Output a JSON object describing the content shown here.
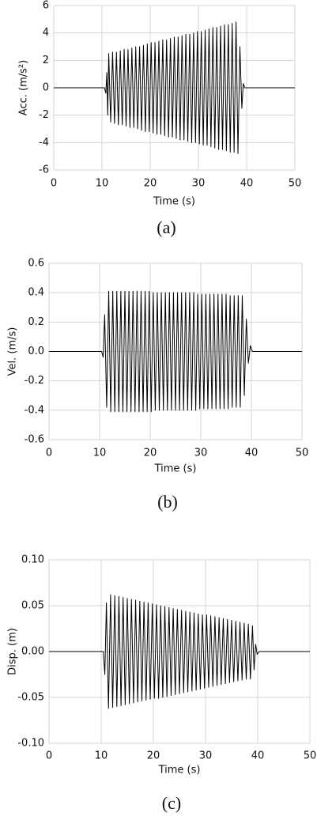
{
  "chart_data": [
    {
      "type": "line",
      "caption": "(a)",
      "x_label": "Time (s)",
      "y_label": "Acc. (m/s²)",
      "xlim": [
        0,
        50
      ],
      "xticks": [
        0,
        10,
        20,
        30,
        40,
        50
      ],
      "ylim": [
        -6,
        6
      ],
      "yticks": [
        -6,
        -4,
        -2,
        0,
        2,
        4,
        6
      ],
      "grid": true,
      "color": "#000000",
      "x": [
        0,
        10.5,
        10.8,
        11.0,
        11.2,
        11.4,
        11.8,
        12.2,
        12.6,
        13.0,
        13.4,
        13.8,
        14.2,
        14.6,
        15.0,
        15.4,
        15.8,
        16.2,
        16.6,
        17.0,
        17.4,
        17.8,
        18.2,
        18.6,
        19.0,
        19.4,
        19.8,
        20.2,
        20.6,
        21.0,
        21.4,
        21.8,
        22.2,
        22.6,
        23.0,
        23.4,
        23.8,
        24.2,
        24.6,
        25.0,
        25.4,
        25.8,
        26.2,
        26.6,
        27.0,
        27.4,
        27.8,
        28.2,
        28.6,
        29.0,
        29.4,
        29.8,
        30.2,
        30.6,
        31.0,
        31.4,
        31.8,
        32.2,
        32.6,
        33.0,
        33.4,
        33.8,
        34.2,
        34.6,
        35.0,
        35.4,
        35.8,
        36.2,
        36.6,
        37.0,
        37.4,
        37.8,
        38.2,
        38.6,
        39.0,
        39.3,
        39.6,
        50
      ],
      "values": [
        0,
        0,
        -0.4,
        1.1,
        -2.0,
        2.5,
        -2.5,
        2.6,
        -2.6,
        2.6,
        -2.7,
        2.7,
        -2.7,
        2.8,
        -2.8,
        2.8,
        -2.9,
        2.9,
        -2.9,
        3.0,
        -3.0,
        3.0,
        -3.1,
        3.1,
        -3.2,
        3.2,
        -3.2,
        3.3,
        -3.3,
        3.3,
        -3.4,
        3.4,
        -3.4,
        3.5,
        -3.5,
        3.5,
        -3.6,
        3.6,
        -3.6,
        3.7,
        -3.7,
        3.7,
        -3.8,
        3.8,
        -3.8,
        3.9,
        -3.9,
        3.9,
        -4.0,
        4.0,
        -4.0,
        4.1,
        -4.1,
        4.1,
        -4.2,
        4.2,
        -4.2,
        4.3,
        -4.3,
        4.4,
        -4.4,
        4.4,
        -4.5,
        4.5,
        -4.5,
        4.6,
        -4.6,
        4.6,
        -4.7,
        4.7,
        -4.7,
        4.8,
        -4.8,
        3.0,
        -1.5,
        0.3,
        0,
        0
      ]
    },
    {
      "type": "line",
      "caption": "(b)",
      "x_label": "Time (s)",
      "y_label": "Vel. (m/s)",
      "xlim": [
        0,
        50
      ],
      "xticks": [
        0,
        10,
        20,
        30,
        40,
        50
      ],
      "ylim": [
        -0.6,
        0.6
      ],
      "yticks": [
        -0.6,
        -0.4,
        -0.2,
        {
          "value": 0,
          "label": "0.0"
        },
        0.2,
        0.4,
        0.6
      ],
      "grid": true,
      "color": "#000000",
      "x": [
        0,
        10.4,
        10.7,
        11.0,
        11.4,
        11.8,
        12.2,
        12.6,
        13.0,
        13.4,
        13.8,
        14.2,
        14.6,
        15.0,
        15.4,
        15.8,
        16.2,
        16.6,
        17.0,
        17.4,
        17.8,
        18.2,
        18.6,
        19.0,
        19.4,
        19.8,
        20.2,
        20.6,
        21.0,
        21.4,
        21.8,
        22.2,
        22.6,
        23.0,
        23.4,
        23.8,
        24.2,
        24.6,
        25.0,
        25.4,
        25.8,
        26.2,
        26.6,
        27.0,
        27.4,
        27.8,
        28.2,
        28.6,
        29.0,
        29.4,
        29.8,
        30.2,
        30.6,
        31.0,
        31.4,
        31.8,
        32.2,
        32.6,
        33.0,
        33.4,
        33.8,
        34.2,
        34.6,
        35.0,
        35.4,
        35.8,
        36.2,
        36.6,
        37.0,
        37.4,
        37.8,
        38.2,
        38.6,
        39.0,
        39.4,
        39.8,
        40.2,
        50
      ],
      "values": [
        0,
        0,
        -0.04,
        0.25,
        -0.38,
        0.41,
        -0.41,
        0.41,
        -0.41,
        0.41,
        -0.41,
        0.41,
        -0.41,
        0.41,
        -0.41,
        0.41,
        -0.41,
        0.41,
        -0.41,
        0.41,
        -0.41,
        0.41,
        -0.41,
        0.41,
        -0.41,
        0.41,
        -0.41,
        0.4,
        -0.4,
        0.4,
        -0.4,
        0.4,
        -0.4,
        0.4,
        -0.4,
        0.4,
        -0.4,
        0.4,
        -0.4,
        0.4,
        -0.4,
        0.4,
        -0.4,
        0.4,
        -0.4,
        0.4,
        -0.4,
        0.4,
        -0.4,
        0.39,
        -0.39,
        0.39,
        -0.39,
        0.39,
        -0.39,
        0.39,
        -0.39,
        0.39,
        -0.39,
        0.39,
        -0.39,
        0.39,
        -0.39,
        0.39,
        -0.39,
        0.38,
        -0.38,
        0.38,
        -0.38,
        0.38,
        -0.38,
        0.38,
        -0.3,
        0.22,
        -0.08,
        0.04,
        0,
        0
      ]
    },
    {
      "type": "line",
      "caption": "(c)",
      "x_label": "Time (s)",
      "y_label": "Disp. (m)",
      "xlim": [
        0,
        50
      ],
      "xticks": [
        0,
        10,
        20,
        30,
        40,
        50
      ],
      "ylim": [
        -0.1,
        0.1
      ],
      "yticks": [
        {
          "value": -0.1,
          "label": "-0.10"
        },
        -0.05,
        {
          "value": 0,
          "label": "0.00"
        },
        0.05,
        {
          "value": 0.1,
          "label": "0.10"
        }
      ],
      "grid": true,
      "color": "#000000",
      "x": [
        0,
        10.4,
        10.7,
        11.0,
        11.4,
        11.8,
        12.2,
        12.6,
        13.0,
        13.4,
        13.8,
        14.2,
        14.6,
        15.0,
        15.4,
        15.8,
        16.2,
        16.6,
        17.0,
        17.4,
        17.8,
        18.2,
        18.6,
        19.0,
        19.4,
        19.8,
        20.2,
        20.6,
        21.0,
        21.4,
        21.8,
        22.2,
        22.6,
        23.0,
        23.4,
        23.8,
        24.2,
        24.6,
        25.0,
        25.4,
        25.8,
        26.2,
        26.6,
        27.0,
        27.4,
        27.8,
        28.2,
        28.6,
        29.0,
        29.4,
        29.8,
        30.2,
        30.6,
        31.0,
        31.4,
        31.8,
        32.2,
        32.6,
        33.0,
        33.4,
        33.8,
        34.2,
        34.6,
        35.0,
        35.4,
        35.8,
        36.2,
        36.6,
        37.0,
        37.4,
        37.8,
        38.2,
        38.6,
        39.0,
        39.3,
        39.6,
        39.9,
        40.3,
        50
      ],
      "values": [
        0,
        0,
        -0.025,
        0.053,
        -0.062,
        0.062,
        -0.061,
        0.061,
        -0.06,
        0.06,
        -0.059,
        0.059,
        -0.058,
        0.058,
        -0.057,
        0.057,
        -0.056,
        0.056,
        -0.055,
        0.055,
        -0.054,
        0.054,
        -0.053,
        0.053,
        -0.052,
        0.052,
        -0.051,
        0.051,
        -0.051,
        0.05,
        -0.05,
        0.049,
        -0.049,
        0.048,
        -0.048,
        0.047,
        -0.047,
        0.046,
        -0.046,
        0.045,
        -0.045,
        0.044,
        -0.044,
        0.043,
        -0.043,
        0.042,
        -0.042,
        0.041,
        -0.041,
        0.04,
        -0.04,
        0.04,
        -0.039,
        0.039,
        -0.038,
        0.038,
        -0.037,
        0.037,
        -0.036,
        0.036,
        -0.035,
        0.035,
        -0.034,
        0.034,
        -0.033,
        0.033,
        -0.032,
        0.032,
        -0.031,
        0.031,
        -0.03,
        0.03,
        -0.03,
        0.028,
        -0.02,
        0.008,
        -0.003,
        0,
        0
      ]
    }
  ]
}
